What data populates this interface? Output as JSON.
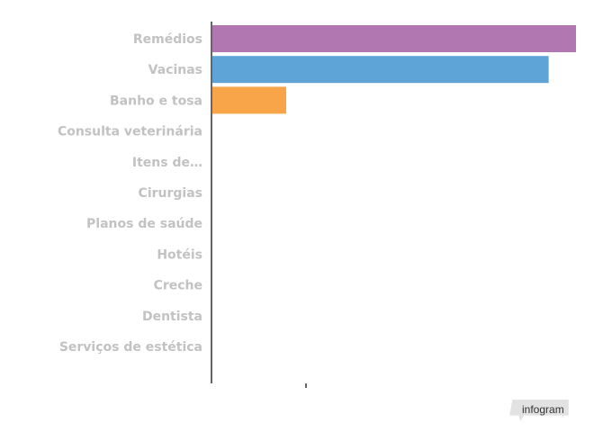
{
  "chart_data": {
    "type": "bar",
    "orientation": "horizontal",
    "categories": [
      "Remédios",
      "Vacinas",
      "Banho e tosa",
      "Consulta veterinária",
      "Itens de…",
      "Cirurgias",
      "Planos de saúde",
      "Hotéis",
      "Creche",
      "Dentista",
      "Serviços de estética"
    ],
    "values": [
      100,
      92.5,
      20.5,
      0,
      0,
      0,
      0,
      0,
      0,
      0,
      0
    ],
    "colors": [
      "#b077b0",
      "#5ea4d6",
      "#f8a54a",
      null,
      null,
      null,
      null,
      null,
      null,
      null,
      null
    ],
    "xlim": [
      0,
      100
    ],
    "grid": false,
    "legend": "none"
  },
  "branding": {
    "label": "infogram",
    "color": "#e2e2e2"
  }
}
